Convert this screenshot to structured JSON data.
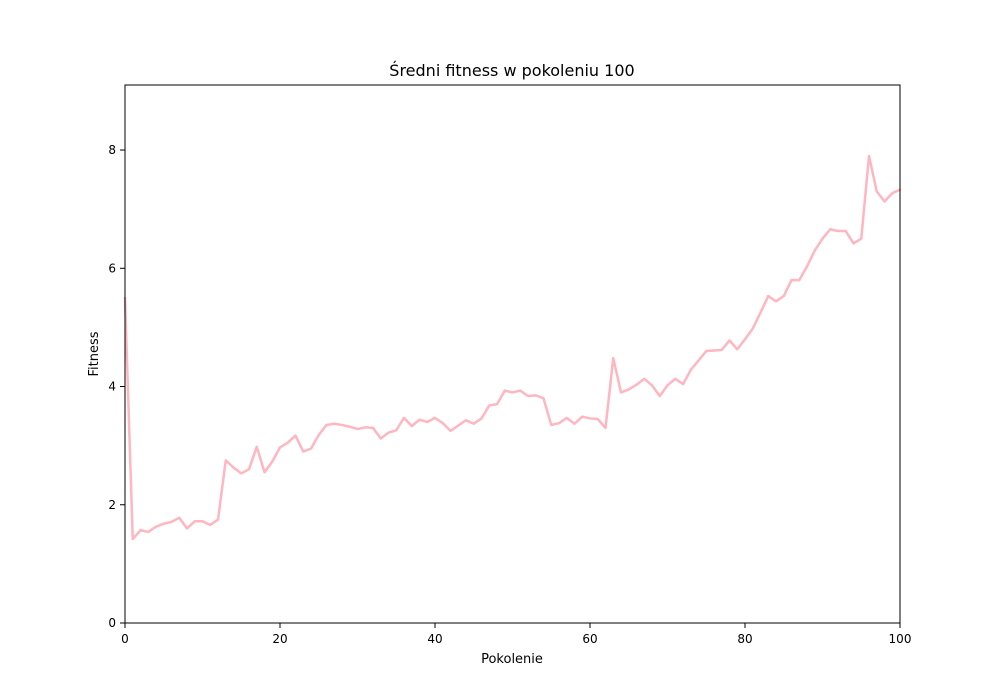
{
  "chart_data": {
    "type": "line",
    "title": "Średni fitness w pokoleniu 100",
    "xlabel": "Pokolenie",
    "ylabel": "Fitness",
    "xlim": [
      0,
      100
    ],
    "ylim": [
      0,
      9.1
    ],
    "xticks": [
      0,
      20,
      40,
      60,
      80,
      100
    ],
    "yticks": [
      0,
      2,
      4,
      6,
      8
    ],
    "grid": false,
    "legend": "none",
    "series": [
      {
        "color": "#ffb6c1",
        "x": [
          0,
          1,
          2,
          3,
          4,
          5,
          6,
          7,
          8,
          9,
          10,
          11,
          12,
          13,
          14,
          15,
          16,
          17,
          18,
          19,
          20,
          21,
          22,
          23,
          24,
          25,
          26,
          27,
          28,
          29,
          30,
          31,
          32,
          33,
          34,
          35,
          36,
          37,
          38,
          39,
          40,
          41,
          42,
          43,
          44,
          45,
          46,
          47,
          48,
          49,
          50,
          51,
          52,
          53,
          54,
          55,
          56,
          57,
          58,
          59,
          60,
          61,
          62,
          63,
          64,
          65,
          66,
          67,
          68,
          69,
          70,
          71,
          72,
          73,
          74,
          75,
          76,
          77,
          78,
          79,
          80,
          81,
          82,
          83,
          84,
          85,
          86,
          87,
          88,
          89,
          90,
          91,
          92,
          93,
          94,
          95,
          96,
          97,
          98,
          99,
          100
        ],
        "values": [
          5.5,
          1.42,
          1.57,
          1.54,
          1.63,
          1.68,
          1.71,
          1.78,
          1.6,
          1.72,
          1.72,
          1.66,
          1.75,
          2.75,
          2.63,
          2.53,
          2.6,
          2.98,
          2.55,
          2.73,
          2.97,
          3.05,
          3.17,
          2.9,
          2.95,
          3.18,
          3.35,
          3.37,
          3.35,
          3.32,
          3.28,
          3.31,
          3.3,
          3.12,
          3.22,
          3.26,
          3.47,
          3.33,
          3.44,
          3.4,
          3.47,
          3.38,
          3.25,
          3.34,
          3.43,
          3.37,
          3.46,
          3.68,
          3.7,
          3.93,
          3.9,
          3.93,
          3.84,
          3.85,
          3.8,
          3.35,
          3.38,
          3.47,
          3.37,
          3.49,
          3.46,
          3.45,
          3.3,
          4.48,
          3.9,
          3.95,
          4.03,
          4.13,
          4.02,
          3.84,
          4.02,
          4.13,
          4.04,
          4.28,
          4.44,
          4.6,
          4.61,
          4.62,
          4.78,
          4.63,
          4.8,
          4.98,
          5.25,
          5.53,
          5.44,
          5.53,
          5.8,
          5.8,
          6.03,
          6.3,
          6.5,
          6.66,
          6.63,
          6.63,
          6.42,
          6.5,
          7.9,
          7.3,
          7.13,
          7.27,
          7.33
        ]
      }
    ]
  }
}
